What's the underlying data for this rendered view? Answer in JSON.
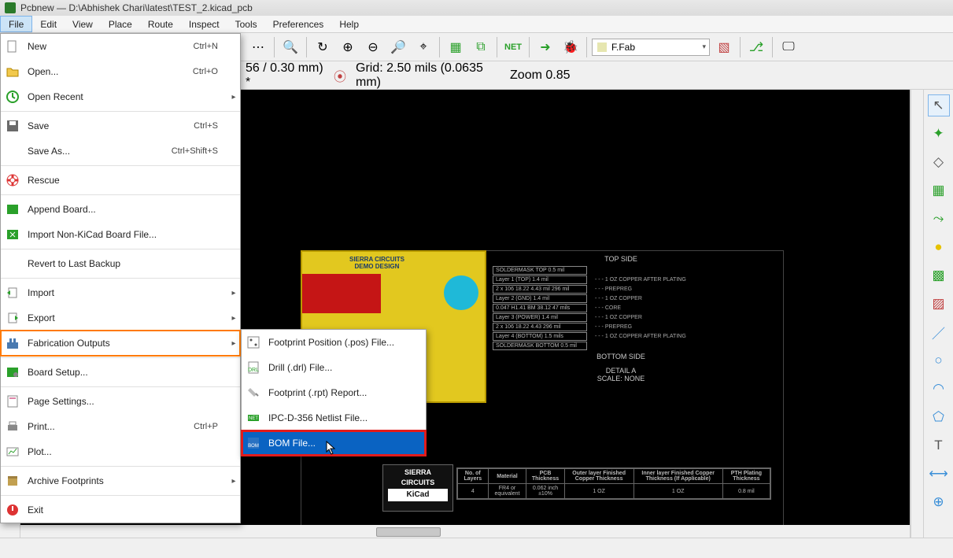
{
  "window": {
    "title": "Pcbnew — D:\\Abhishek Chari\\latest\\TEST_2.kicad_pcb"
  },
  "menu_bar": {
    "items": [
      "File",
      "Edit",
      "View",
      "Place",
      "Route",
      "Inspect",
      "Tools",
      "Preferences",
      "Help"
    ],
    "active_index": 0
  },
  "toolbar1": {
    "layer_dropdown": "F.Fab"
  },
  "toolbar2": {
    "track_dropdown": "56 / 0.30 mm) *",
    "grid_dropdown": "Grid: 2.50 mils (0.0635 mm)",
    "zoom_dropdown": "Zoom 0.85"
  },
  "file_menu": {
    "items": [
      {
        "icon": "new",
        "label": "New",
        "shortcut": "Ctrl+N"
      },
      {
        "icon": "open",
        "label": "Open...",
        "shortcut": "Ctrl+O"
      },
      {
        "icon": "recent",
        "label": "Open Recent",
        "submenu": true
      },
      {
        "sep": true
      },
      {
        "icon": "save",
        "label": "Save",
        "shortcut": "Ctrl+S"
      },
      {
        "icon": "blank",
        "label": "Save As...",
        "shortcut": "Ctrl+Shift+S"
      },
      {
        "sep": true
      },
      {
        "icon": "rescue",
        "label": "Rescue"
      },
      {
        "sep": true
      },
      {
        "icon": "append",
        "label": "Append Board..."
      },
      {
        "icon": "importnk",
        "label": "Import Non-KiCad Board File..."
      },
      {
        "sep": true
      },
      {
        "icon": "blank",
        "label": "Revert to Last Backup"
      },
      {
        "sep": true
      },
      {
        "icon": "import",
        "label": "Import",
        "submenu": true
      },
      {
        "icon": "export",
        "label": "Export",
        "submenu": true
      },
      {
        "icon": "fab",
        "label": "Fabrication Outputs",
        "submenu": true,
        "highlighted": true
      },
      {
        "sep": true
      },
      {
        "icon": "boardsetup",
        "label": "Board Setup..."
      },
      {
        "sep": true
      },
      {
        "icon": "pagesettings",
        "label": "Page Settings..."
      },
      {
        "icon": "print",
        "label": "Print...",
        "shortcut": "Ctrl+P"
      },
      {
        "icon": "plot",
        "label": "Plot..."
      },
      {
        "sep": true
      },
      {
        "icon": "archive",
        "label": "Archive Footprints",
        "submenu": true
      },
      {
        "sep": true
      },
      {
        "icon": "exit",
        "label": "Exit"
      }
    ]
  },
  "fabrication_submenu": {
    "items": [
      {
        "icon": "pos",
        "label": "Footprint Position (.pos) File..."
      },
      {
        "icon": "drill",
        "label": "Drill (.drl) File..."
      },
      {
        "icon": "rpt",
        "label": "Footprint (.rpt) Report..."
      },
      {
        "icon": "ipc",
        "label": "IPC-D-356 Netlist File..."
      },
      {
        "icon": "bom",
        "label": "BOM File...",
        "selected": true,
        "highlighted": true
      }
    ]
  },
  "canvas_content": {
    "pcb_header": "SIERRA CIRCUITS\nDEMO DESIGN",
    "stackup": {
      "top_title": "TOP SIDE",
      "rows": [
        {
          "box": "SOLDERMASK TOP   0.5 mil",
          "note": ""
        },
        {
          "box": "Layer 1 (TOP) 1.4 mil",
          "note": "- - - 1 OZ COPPER AFTER PLATING"
        },
        {
          "box": "2 x 106 18.22   4.43 mil   296 mil",
          "note": "- - - PREPREG"
        },
        {
          "box": "Layer 2 (GND)   1.4 mil",
          "note": "- - - 1 OZ COPPER"
        },
        {
          "box": "0.047 H1.41 BM 38.12 47 mils",
          "note": "- - - CORE"
        },
        {
          "box": "Layer 3 (POWER)  1.4 mil",
          "note": "- - - 1 OZ COPPER"
        },
        {
          "box": "2 x 106 18.22   4.43  296 mil",
          "note": "- - - PREPREG"
        },
        {
          "box": "Layer 4 (BOTTOM) 1.5 mils",
          "note": "- - - 1 OZ COPPER AFTER PLATING"
        },
        {
          "box": "SOLDERMASK BOTTOM  0.5 mil",
          "note": ""
        }
      ],
      "bottom_title": "BOTTOM SIDE",
      "detail": "DETAIL A\nSCALE: NONE"
    },
    "table": {
      "headers": [
        "No. of Layers",
        "Material",
        "PCB Thickness",
        "Outer layer Finished Copper Thickness",
        "Inner layer Finished Copper Thickness (If Applicable)",
        "PTH Plating Thickness"
      ],
      "row": [
        "4",
        "FR4 or equivalent",
        "0.062 inch ±10%",
        "1 OZ",
        "1 OZ",
        "0.8 mil"
      ]
    },
    "logo": {
      "line1": "SIERRA",
      "line2": "CIRCUITS",
      "kicad": "KiCad"
    }
  },
  "colors": {
    "highlight_orange": "#ff7a00",
    "highlight_red": "#e21b1b",
    "selection_blue": "#0a63c2",
    "pcb_yellow": "#e2c81f",
    "pcb_red": "#c51515",
    "pcb_cyan": "#1fb9d8"
  }
}
